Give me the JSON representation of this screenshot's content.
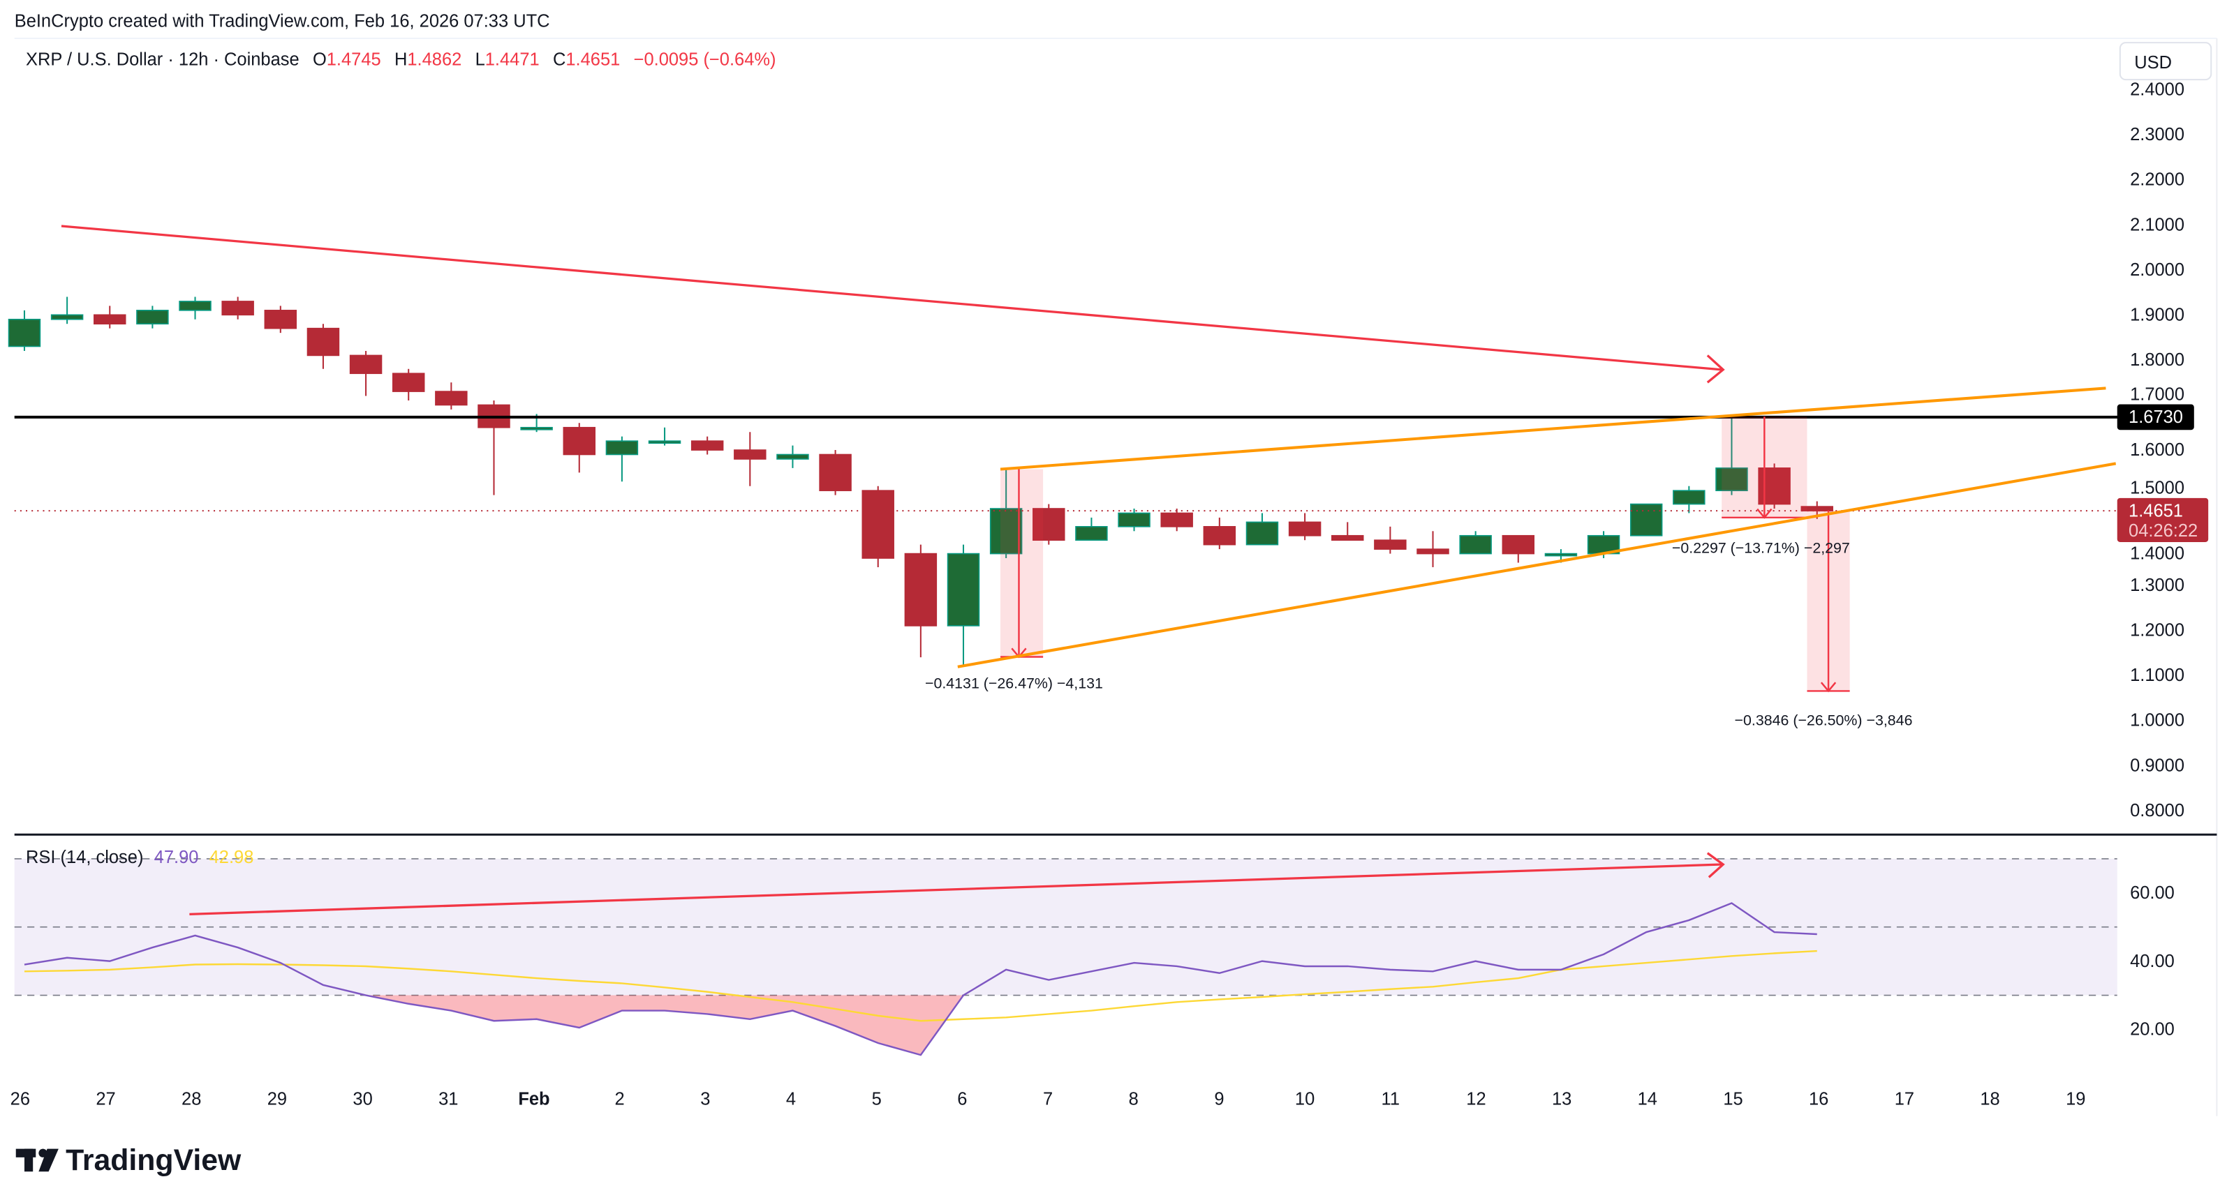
{
  "watermark": "BeInCrypto created with TradingView.com, Feb 16, 2026 07:33 UTC",
  "legend": {
    "symbol": "XRP / U.S. Dollar · 12h · Coinbase",
    "o_label": "O",
    "o": "1.4745",
    "h_label": "H",
    "h": "1.4862",
    "l_label": "L",
    "l": "1.4471",
    "c_label": "C",
    "c": "1.4651",
    "change": "−0.0095 (−0.64%)"
  },
  "currency_button": "USD",
  "price_labels": {
    "horizontal_line": "1.6730",
    "last_price": "1.4651",
    "countdown": "04:26:22"
  },
  "measurements": [
    "−0.4131 (−26.47%) −4,131",
    "−0.2297 (−13.71%) −2,297",
    "−0.3846 (−26.50%) −3,846"
  ],
  "rsi_legend": {
    "label": "RSI (14, close)",
    "rsi": "47.90",
    "ma": "42.98"
  },
  "brand": "TradingView",
  "colors": {
    "up": "#1e6b35",
    "up_wick": "#089981",
    "down": "#b52a36",
    "trendline": "#f23645",
    "wedge": "#ff9800",
    "rsi": "#7e57c2",
    "rsi_ma": "#fdd835"
  },
  "chart_data": [
    {
      "type": "candlestick",
      "ylim": [
        0.75,
        2.45
      ],
      "yticks": [
        "2.4000",
        "2.3000",
        "2.2000",
        "2.1000",
        "2.0000",
        "1.9000",
        "1.8000",
        "1.7000",
        "1.6000",
        "1.5000",
        "1.4000",
        "1.3000",
        "1.2000",
        "1.1000",
        "1.0000",
        "0.9000",
        "0.8000"
      ],
      "xticks": [
        "26",
        "27",
        "28",
        "29",
        "30",
        "31",
        "Feb",
        "2",
        "3",
        "4",
        "5",
        "6",
        "7",
        "8",
        "9",
        "10",
        "11",
        "12",
        "13",
        "14",
        "15",
        "16",
        "17",
        "18",
        "19"
      ],
      "ohlc": [
        [
          1.83,
          1.91,
          1.82,
          1.89
        ],
        [
          1.89,
          1.94,
          1.88,
          1.9
        ],
        [
          1.9,
          1.92,
          1.87,
          1.88
        ],
        [
          1.88,
          1.92,
          1.87,
          1.91
        ],
        [
          1.91,
          1.94,
          1.89,
          1.93
        ],
        [
          1.93,
          1.94,
          1.89,
          1.9
        ],
        [
          1.91,
          1.92,
          1.86,
          1.87
        ],
        [
          1.87,
          1.88,
          1.78,
          1.81
        ],
        [
          1.81,
          1.82,
          1.72,
          1.77
        ],
        [
          1.77,
          1.78,
          1.71,
          1.73
        ],
        [
          1.73,
          1.75,
          1.69,
          1.7
        ],
        [
          1.7,
          1.71,
          1.5,
          1.65
        ],
        [
          1.65,
          1.68,
          1.64,
          1.65
        ],
        [
          1.65,
          1.66,
          1.55,
          1.59
        ],
        [
          1.59,
          1.63,
          1.53,
          1.62
        ],
        [
          1.62,
          1.65,
          1.61,
          1.62
        ],
        [
          1.62,
          1.63,
          1.59,
          1.6
        ],
        [
          1.6,
          1.64,
          1.52,
          1.58
        ],
        [
          1.58,
          1.61,
          1.56,
          1.59
        ],
        [
          1.59,
          1.6,
          1.5,
          1.51
        ],
        [
          1.51,
          1.52,
          1.34,
          1.36
        ],
        [
          1.37,
          1.39,
          1.14,
          1.21
        ],
        [
          1.21,
          1.39,
          1.12,
          1.37
        ],
        [
          1.37,
          1.56,
          1.36,
          1.47
        ],
        [
          1.47,
          1.48,
          1.39,
          1.4
        ],
        [
          1.4,
          1.45,
          1.4,
          1.43
        ],
        [
          1.43,
          1.47,
          1.42,
          1.46
        ],
        [
          1.46,
          1.47,
          1.42,
          1.43
        ],
        [
          1.43,
          1.45,
          1.38,
          1.39
        ],
        [
          1.39,
          1.46,
          1.39,
          1.44
        ],
        [
          1.44,
          1.46,
          1.4,
          1.41
        ],
        [
          1.41,
          1.44,
          1.4,
          1.4
        ],
        [
          1.4,
          1.43,
          1.37,
          1.38
        ],
        [
          1.38,
          1.42,
          1.34,
          1.37
        ],
        [
          1.37,
          1.42,
          1.37,
          1.41
        ],
        [
          1.41,
          1.41,
          1.35,
          1.37
        ],
        [
          1.37,
          1.38,
          1.35,
          1.37
        ],
        [
          1.37,
          1.42,
          1.36,
          1.41
        ],
        [
          1.41,
          1.48,
          1.41,
          1.48
        ],
        [
          1.48,
          1.52,
          1.46,
          1.51
        ],
        [
          1.51,
          1.673,
          1.5,
          1.56
        ],
        [
          1.56,
          1.57,
          1.47,
          1.48
        ],
        [
          1.4745,
          1.4862,
          1.4471,
          1.4651
        ]
      ],
      "levels": {
        "horizontal_line": 1.673,
        "last_price": 1.4651
      }
    },
    {
      "type": "line",
      "title": "RSI (14, close)",
      "ylim": [
        10,
        72
      ],
      "yticks": [
        "60.00",
        "40.00",
        "20.00"
      ],
      "bands": [
        30,
        50,
        70
      ],
      "series": [
        {
          "name": "RSI",
          "values": [
            39,
            41,
            40,
            44,
            47.5,
            44,
            39.5,
            33,
            30,
            27.5,
            25.5,
            22.5,
            23,
            20.5,
            25.5,
            25.5,
            24.5,
            23,
            25.5,
            21,
            16,
            12.5,
            30,
            37.5,
            34.5,
            37,
            39.5,
            38.5,
            36.5,
            40,
            38.5,
            38.5,
            37.5,
            37,
            40,
            37.5,
            37.5,
            42,
            48.5,
            52,
            57,
            48.5,
            47.9
          ]
        },
        {
          "name": "RSI MA",
          "values": [
            37,
            37.2,
            37.5,
            38.2,
            39,
            39.1,
            39,
            38.8,
            38.5,
            37.8,
            37,
            36,
            35,
            34.2,
            33.5,
            32.3,
            31,
            29.5,
            28,
            26,
            24,
            22.5,
            23,
            23.5,
            24.5,
            25.5,
            26.8,
            28,
            28.8,
            29.5,
            30.3,
            31,
            31.8,
            32.5,
            33.8,
            35,
            37.5,
            38.5,
            39.5,
            40.5,
            41.5,
            42.3,
            42.98
          ]
        }
      ]
    }
  ]
}
